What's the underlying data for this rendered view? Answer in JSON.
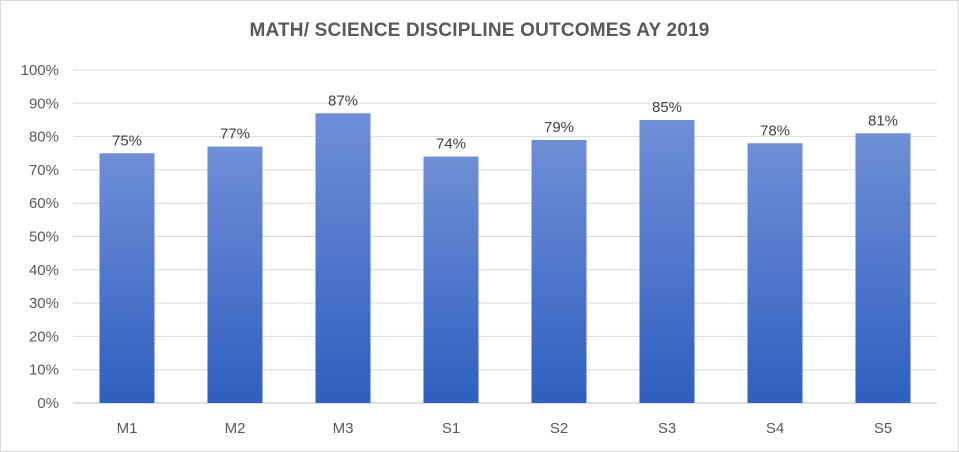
{
  "chart_data": {
    "type": "bar",
    "title": "MATH/ SCIENCE DISCIPLINE OUTCOMES AY 2019",
    "categories": [
      "M1",
      "M2",
      "M3",
      "S1",
      "S2",
      "S3",
      "S4",
      "S5"
    ],
    "values": [
      75,
      77,
      87,
      74,
      79,
      85,
      78,
      81
    ],
    "data_labels": [
      "75%",
      "77%",
      "87%",
      "74%",
      "79%",
      "85%",
      "78%",
      "81%"
    ],
    "yticks": [
      "0%",
      "10%",
      "20%",
      "30%",
      "40%",
      "50%",
      "60%",
      "70%",
      "80%",
      "90%",
      "100%"
    ],
    "ylim": [
      0,
      100
    ],
    "xlabel": "",
    "ylabel": "",
    "grid": true,
    "legend": "none",
    "colors": {
      "bar_top": "#6f8fd6",
      "bar_bottom": "#2f5fc0",
      "grid": "#d9d9d9",
      "axis": "#bfbfbf"
    }
  }
}
